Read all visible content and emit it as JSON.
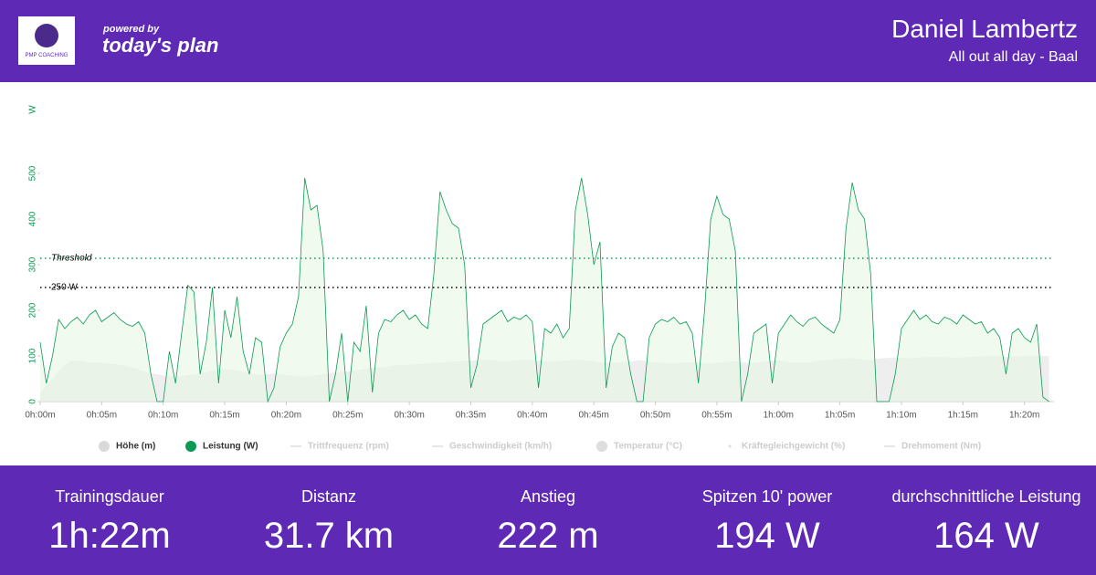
{
  "header": {
    "logo_text": "PMP COACHING",
    "powered_by": "powered by",
    "brand": "today's plan",
    "athlete": "Daniel Lambertz",
    "activity": "All out all day - Baal"
  },
  "chart_data": {
    "type": "line",
    "y_label": "W",
    "x": [
      0,
      0.5,
      1,
      1.5,
      2,
      2.5,
      3,
      3.5,
      4,
      4.5,
      5,
      5.5,
      6,
      6.5,
      7,
      7.5,
      8,
      8.5,
      9,
      9.5,
      10,
      10.5,
      11,
      11.5,
      12,
      12.5,
      13,
      13.5,
      14,
      14.5,
      15,
      15.5,
      16,
      16.5,
      17,
      17.5,
      18,
      18.5,
      19,
      19.5,
      20,
      20.5,
      21,
      21.5,
      22,
      22.5,
      23,
      23.5,
      24,
      24.5,
      25,
      25.5,
      26,
      26.5,
      27,
      27.5,
      28,
      28.5,
      29,
      29.5,
      30,
      30.5,
      31,
      31.5,
      32,
      32.5,
      33,
      33.5,
      34,
      34.5,
      35,
      35.5,
      36,
      36.5,
      37,
      37.5,
      38,
      38.5,
      39,
      39.5,
      40,
      40.5,
      41,
      41.5,
      42,
      42.5,
      43,
      43.5,
      44,
      44.5,
      45,
      45.5,
      46,
      46.5,
      47,
      47.5,
      48,
      48.5,
      49,
      49.5,
      50,
      50.5,
      51,
      51.5,
      52,
      52.5,
      53,
      53.5,
      54,
      54.5,
      55,
      55.5,
      56,
      56.5,
      57,
      57.5,
      58,
      58.5,
      59,
      59.5,
      60,
      60.5,
      61,
      61.5,
      62,
      62.5,
      63,
      63.5,
      64,
      64.5,
      65,
      65.5,
      66,
      66.5,
      67,
      67.5,
      68,
      68.5,
      69,
      69.5,
      70,
      70.5,
      71,
      71.5,
      72,
      72.5,
      73,
      73.5,
      74,
      74.5,
      75,
      75.5,
      76,
      76.5,
      77,
      77.5,
      78,
      78.5,
      79,
      79.5,
      80,
      80.5,
      81,
      81.5,
      82
    ],
    "series": [
      {
        "name": "Höhe (m)",
        "color": "#d9d9d9",
        "marker": "circle",
        "fill": true,
        "values": [
          20,
          35,
          50,
          65,
          80,
          90,
          90,
          88,
          86,
          85,
          85,
          84,
          82,
          80,
          78,
          75,
          70,
          65,
          62,
          60,
          58,
          55,
          55,
          56,
          58,
          60,
          62,
          65,
          68,
          70,
          72,
          70,
          68,
          65,
          62,
          60,
          58,
          60,
          62,
          60,
          58,
          56,
          55,
          55,
          56,
          58,
          60,
          62,
          64,
          65,
          66,
          68,
          70,
          72,
          74,
          75,
          76,
          78,
          80,
          80,
          80,
          82,
          82,
          84,
          85,
          85,
          86,
          88,
          88,
          90,
          90,
          90,
          92,
          92,
          90,
          88,
          88,
          90,
          92,
          92,
          92,
          90,
          90,
          88,
          88,
          90,
          90,
          92,
          92,
          90,
          88,
          86,
          85,
          85,
          86,
          88,
          88,
          90,
          90,
          88,
          86,
          85,
          84,
          84,
          85,
          86,
          86,
          85,
          84,
          84,
          85,
          86,
          88,
          88,
          86,
          85,
          85,
          86,
          88,
          90,
          90,
          88,
          86,
          85,
          85,
          86,
          88,
          90,
          92,
          92,
          94,
          95,
          95,
          94,
          92,
          92,
          94,
          95,
          96,
          96,
          96,
          95,
          95,
          96,
          97,
          98,
          98,
          97,
          96,
          96,
          97,
          98,
          98,
          99,
          100,
          100,
          99,
          98,
          98,
          99,
          100,
          100,
          100,
          100,
          100
        ]
      },
      {
        "name": "Leistung (W)",
        "color": "#0a9a54",
        "marker": "circle",
        "fill": false,
        "values": [
          130,
          40,
          100,
          180,
          160,
          175,
          185,
          170,
          190,
          200,
          175,
          185,
          195,
          180,
          170,
          165,
          175,
          150,
          60,
          0,
          0,
          110,
          40,
          150,
          255,
          240,
          60,
          130,
          250,
          40,
          200,
          140,
          230,
          110,
          60,
          140,
          130,
          0,
          30,
          120,
          150,
          170,
          230,
          490,
          420,
          430,
          330,
          0,
          60,
          150,
          0,
          130,
          110,
          210,
          20,
          150,
          180,
          175,
          190,
          200,
          180,
          190,
          170,
          160,
          280,
          460,
          420,
          390,
          380,
          300,
          30,
          80,
          170,
          180,
          190,
          200,
          175,
          185,
          180,
          190,
          175,
          30,
          160,
          150,
          170,
          140,
          160,
          420,
          490,
          410,
          300,
          350,
          30,
          120,
          150,
          140,
          60,
          0,
          0,
          140,
          170,
          180,
          175,
          185,
          170,
          175,
          150,
          40,
          200,
          400,
          450,
          410,
          400,
          330,
          0,
          60,
          150,
          160,
          170,
          40,
          150,
          170,
          190,
          175,
          165,
          180,
          185,
          170,
          160,
          150,
          180,
          380,
          480,
          420,
          400,
          280,
          0,
          0,
          0,
          60,
          160,
          180,
          200,
          180,
          190,
          175,
          170,
          185,
          180,
          170,
          190,
          180,
          170,
          175,
          150,
          160,
          140,
          60,
          150,
          160,
          140,
          130,
          170,
          10,
          0
        ]
      }
    ],
    "inactive_series": [
      {
        "name": "Trittfrequenz (rpm)",
        "marker": "line"
      },
      {
        "name": "Geschwindigkeit (km/h)",
        "marker": "line"
      },
      {
        "name": "Temperatur (°C)",
        "marker": "circle"
      },
      {
        "name": "Kräftegleichgewicht (%)",
        "marker": "dot"
      },
      {
        "name": "Drehmoment (Nm)",
        "marker": "line"
      }
    ],
    "annotations": [
      {
        "text": "Threshold",
        "value": 314,
        "color": "#0a9a54"
      },
      {
        "text": "250 W",
        "value": 250,
        "color": "#000000"
      }
    ],
    "xlim": [
      0,
      82.4
    ],
    "ylim": [
      0,
      640
    ],
    "xticks": [
      {
        "value": 0,
        "label": "0h:00m"
      },
      {
        "value": 5,
        "label": "0h:05m"
      },
      {
        "value": 10,
        "label": "0h:10m"
      },
      {
        "value": 15,
        "label": "0h:15m"
      },
      {
        "value": 20,
        "label": "0h:20m"
      },
      {
        "value": 25,
        "label": "0h:25m"
      },
      {
        "value": 30,
        "label": "0h:30m"
      },
      {
        "value": 35,
        "label": "0h:35m"
      },
      {
        "value": 40,
        "label": "0h:40m"
      },
      {
        "value": 45,
        "label": "0h:45m"
      },
      {
        "value": 50,
        "label": "0h:50m"
      },
      {
        "value": 55,
        "label": "0h:55m"
      },
      {
        "value": 60,
        "label": "1h:00m"
      },
      {
        "value": 65,
        "label": "1h:05m"
      },
      {
        "value": 70,
        "label": "1h:10m"
      },
      {
        "value": 75,
        "label": "1h:15m"
      },
      {
        "value": 80,
        "label": "1h:20m"
      }
    ],
    "yticks": [
      0,
      100,
      200,
      300,
      400,
      500
    ]
  },
  "stats": [
    {
      "label": "Trainingsdauer",
      "value": "1h:22m"
    },
    {
      "label": "Distanz",
      "value": "31.7 km"
    },
    {
      "label": "Anstieg",
      "value": "222 m"
    },
    {
      "label": "Spitzen 10' power",
      "value": "194 W"
    },
    {
      "label": "durchschnittliche Leistung",
      "value": "164 W"
    }
  ]
}
